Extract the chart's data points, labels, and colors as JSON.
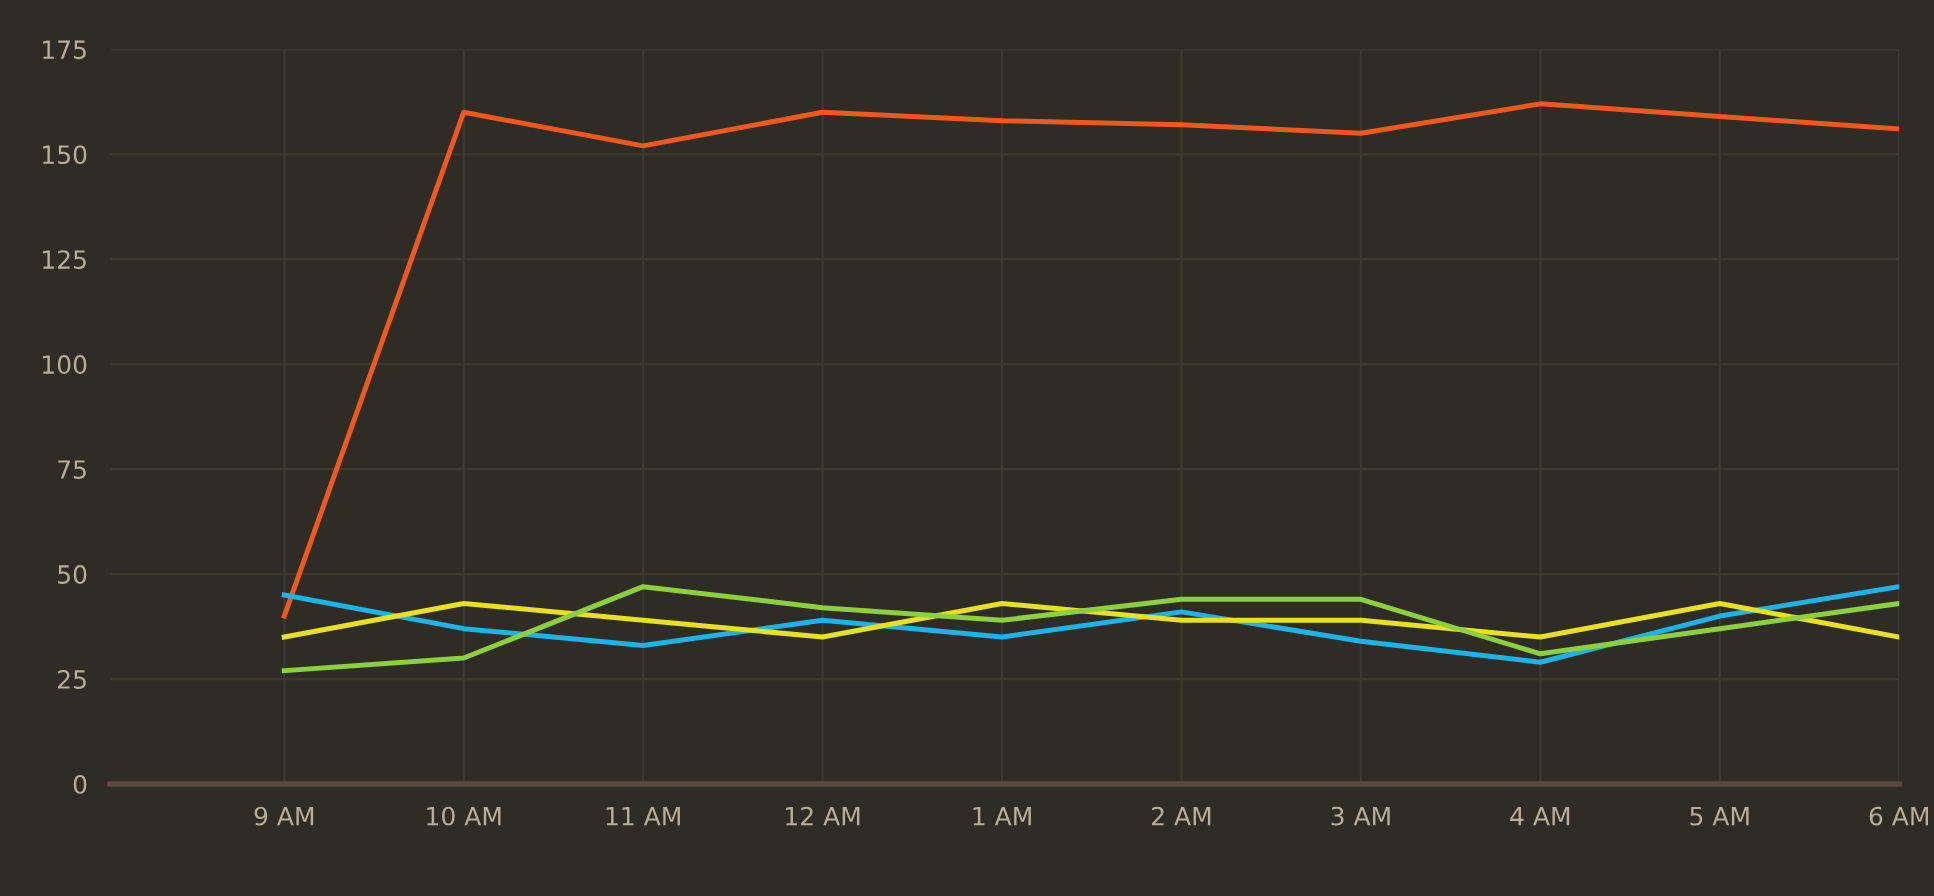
{
  "chart_data": {
    "type": "line",
    "categories": [
      "9 AM",
      "10 AM",
      "11 AM",
      "12 AM",
      "1 AM",
      "2 AM",
      "3 AM",
      "4 AM",
      "5 AM",
      "6 AM"
    ],
    "series": [
      {
        "color": "#f0581c",
        "values": [
          40,
          160,
          152,
          160,
          158,
          157,
          155,
          162,
          159,
          156
        ]
      },
      {
        "color": "#1cb4e8",
        "values": [
          45,
          37,
          33,
          39,
          35,
          41,
          34,
          29,
          40,
          47
        ]
      },
      {
        "color": "#e8e020",
        "values": [
          35,
          43,
          39,
          35,
          43,
          39,
          39,
          35,
          43,
          35
        ]
      },
      {
        "color": "#8cd03c",
        "values": [
          27,
          30,
          47,
          42,
          39,
          44,
          44,
          31,
          37,
          43
        ]
      }
    ],
    "ylim": [
      0,
      175
    ],
    "yticks": [
      0,
      25,
      50,
      75,
      100,
      125,
      150,
      175
    ],
    "grid": true,
    "marker": "none",
    "line_style": "solid"
  }
}
